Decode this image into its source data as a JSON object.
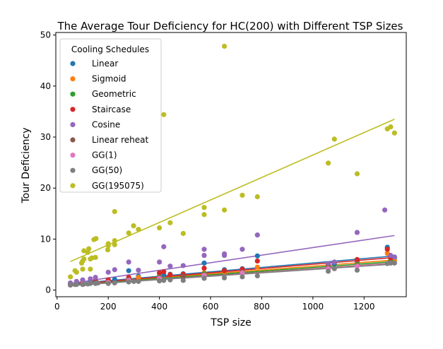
{
  "chart_data": {
    "type": "scatter",
    "title": "The Average Tour Deficiency for HC(200) with Different TSP Sizes",
    "xlabel": "TSP size",
    "ylabel": "Tour Deficiency",
    "xlim": [
      -5,
      1365
    ],
    "ylim": [
      -1.3,
      50.5
    ],
    "xticks": [
      0,
      200,
      400,
      600,
      800,
      1000,
      1200
    ],
    "yticks": [
      0,
      10,
      20,
      30,
      40,
      50
    ],
    "grid": false,
    "legend_title": "Cooling Schedules",
    "legend_position": "upper-left",
    "series": [
      {
        "name": "Linear",
        "color": "#1f77b4",
        "trend": [
          [
            52,
            1.2
          ],
          [
            1319,
            6.7
          ]
        ],
        "points": [
          [
            52,
            1.3
          ],
          [
            76,
            1.4
          ],
          [
            100,
            1.5
          ],
          [
            130,
            1.6
          ],
          [
            150,
            1.8
          ],
          [
            200,
            2.0
          ],
          [
            225,
            2.1
          ],
          [
            280,
            3.8
          ],
          [
            318,
            2.7
          ],
          [
            400,
            3.3
          ],
          [
            417,
            3.0
          ],
          [
            442,
            3.1
          ],
          [
            493,
            3.2
          ],
          [
            575,
            5.3
          ],
          [
            654,
            4.0
          ],
          [
            724,
            4.2
          ],
          [
            783,
            6.7
          ],
          [
            1060,
            4.9
          ],
          [
            1084,
            5.2
          ],
          [
            1173,
            5.6
          ],
          [
            1291,
            8.4
          ],
          [
            1304,
            6.5
          ],
          [
            1319,
            6.3
          ]
        ]
      },
      {
        "name": "Sigmoid",
        "color": "#ff7f0e",
        "trend": [
          [
            52,
            1.1
          ],
          [
            1319,
            5.9
          ]
        ],
        "points": [
          [
            52,
            1.2
          ],
          [
            100,
            1.4
          ],
          [
            150,
            1.6
          ],
          [
            200,
            1.9
          ],
          [
            280,
            2.3
          ],
          [
            318,
            2.5
          ],
          [
            400,
            2.8
          ],
          [
            442,
            3.0
          ],
          [
            493,
            3.1
          ],
          [
            575,
            3.4
          ],
          [
            654,
            3.6
          ],
          [
            724,
            3.8
          ],
          [
            783,
            4.5
          ],
          [
            1060,
            4.7
          ],
          [
            1173,
            5.1
          ],
          [
            1291,
            7.2
          ],
          [
            1304,
            6.1
          ],
          [
            1319,
            5.8
          ]
        ]
      },
      {
        "name": "Geometric",
        "color": "#2ca02c",
        "trend": [
          [
            52,
            1.0
          ],
          [
            1319,
            5.6
          ]
        ],
        "points": [
          [
            52,
            1.1
          ],
          [
            100,
            1.3
          ],
          [
            150,
            1.5
          ],
          [
            200,
            1.7
          ],
          [
            280,
            2.2
          ],
          [
            400,
            2.6
          ],
          [
            493,
            2.9
          ],
          [
            575,
            3.2
          ],
          [
            724,
            3.7
          ],
          [
            1060,
            4.5
          ],
          [
            1173,
            5.0
          ],
          [
            1304,
            5.7
          ]
        ]
      },
      {
        "name": "Staircase",
        "color": "#d62728",
        "trend": [
          [
            52,
            1.1
          ],
          [
            1319,
            6.4
          ]
        ],
        "points": [
          [
            52,
            1.3
          ],
          [
            100,
            1.5
          ],
          [
            150,
            1.7
          ],
          [
            200,
            2.0
          ],
          [
            280,
            2.5
          ],
          [
            400,
            3.4
          ],
          [
            417,
            3.6
          ],
          [
            442,
            3.0
          ],
          [
            493,
            3.1
          ],
          [
            575,
            4.3
          ],
          [
            654,
            3.8
          ],
          [
            724,
            4.1
          ],
          [
            783,
            5.7
          ],
          [
            1060,
            5.0
          ],
          [
            1173,
            6.0
          ],
          [
            1291,
            8.0
          ],
          [
            1304,
            6.3
          ]
        ]
      },
      {
        "name": "Cosine",
        "color": "#9467bd",
        "trend": [
          [
            52,
            1.3
          ],
          [
            1319,
            10.7
          ]
        ],
        "points": [
          [
            52,
            1.4
          ],
          [
            76,
            1.7
          ],
          [
            100,
            2.0
          ],
          [
            130,
            2.2
          ],
          [
            150,
            2.5
          ],
          [
            200,
            3.5
          ],
          [
            225,
            4.0
          ],
          [
            280,
            5.5
          ],
          [
            318,
            3.9
          ],
          [
            400,
            5.5
          ],
          [
            417,
            8.5
          ],
          [
            442,
            4.7
          ],
          [
            493,
            4.8
          ],
          [
            575,
            8.0
          ],
          [
            575,
            6.8
          ],
          [
            654,
            7.1
          ],
          [
            654,
            6.8
          ],
          [
            724,
            8.0
          ],
          [
            783,
            10.8
          ],
          [
            1060,
            5.2
          ],
          [
            1084,
            5.5
          ],
          [
            1173,
            11.3
          ],
          [
            1281,
            15.7
          ],
          [
            1304,
            6.8
          ],
          [
            1319,
            6.5
          ]
        ]
      },
      {
        "name": "Linear reheat",
        "color": "#8c564b",
        "trend": [
          [
            52,
            0.9
          ],
          [
            1319,
            5.3
          ]
        ],
        "points": [
          [
            52,
            1.0
          ],
          [
            100,
            1.2
          ],
          [
            150,
            1.4
          ],
          [
            200,
            1.6
          ],
          [
            280,
            2.0
          ],
          [
            400,
            2.4
          ],
          [
            493,
            2.7
          ],
          [
            575,
            3.0
          ],
          [
            724,
            3.5
          ],
          [
            1060,
            4.3
          ],
          [
            1173,
            4.8
          ],
          [
            1304,
            5.4
          ]
        ]
      },
      {
        "name": "GG(1)",
        "color": "#e377c2",
        "trend": [
          [
            52,
            0.9
          ],
          [
            1319,
            5.2
          ]
        ],
        "points": [
          [
            52,
            1.0
          ],
          [
            100,
            1.2
          ],
          [
            200,
            1.5
          ],
          [
            280,
            1.9
          ],
          [
            400,
            2.3
          ],
          [
            575,
            2.9
          ],
          [
            724,
            3.4
          ],
          [
            1060,
            4.2
          ],
          [
            1173,
            4.7
          ],
          [
            1304,
            5.3
          ]
        ]
      },
      {
        "name": "GG(50)",
        "color": "#7f7f7f",
        "trend": [
          [
            52,
            0.9
          ],
          [
            1319,
            5.1
          ]
        ],
        "points": [
          [
            52,
            1.0
          ],
          [
            70,
            1.1
          ],
          [
            76,
            1.1
          ],
          [
            100,
            1.1
          ],
          [
            105,
            1.2
          ],
          [
            120,
            1.2
          ],
          [
            130,
            1.3
          ],
          [
            150,
            1.3
          ],
          [
            160,
            1.4
          ],
          [
            200,
            1.3
          ],
          [
            225,
            1.4
          ],
          [
            280,
            1.6
          ],
          [
            300,
            1.7
          ],
          [
            318,
            1.7
          ],
          [
            400,
            1.8
          ],
          [
            417,
            1.9
          ],
          [
            442,
            2.0
          ],
          [
            493,
            1.9
          ],
          [
            575,
            2.3
          ],
          [
            654,
            2.4
          ],
          [
            724,
            2.6
          ],
          [
            783,
            2.8
          ],
          [
            1060,
            3.7
          ],
          [
            1084,
            4.2
          ],
          [
            1173,
            3.9
          ],
          [
            1291,
            5.2
          ],
          [
            1304,
            5.3
          ],
          [
            1319,
            5.3
          ]
        ]
      },
      {
        "name": "GG(195075)",
        "color": "#bcbd22",
        "trend": [
          [
            52,
            5.6
          ],
          [
            1319,
            33.5
          ]
        ],
        "points": [
          [
            52,
            2.6
          ],
          [
            70,
            3.8
          ],
          [
            76,
            3.5
          ],
          [
            96,
            5.3
          ],
          [
            100,
            4.1
          ],
          [
            100,
            5.7
          ],
          [
            105,
            7.7
          ],
          [
            105,
            6.1
          ],
          [
            120,
            7.4
          ],
          [
            124,
            8.1
          ],
          [
            130,
            4.1
          ],
          [
            130,
            6.1
          ],
          [
            136,
            6.3
          ],
          [
            144,
            9.9
          ],
          [
            150,
            6.4
          ],
          [
            152,
            10.1
          ],
          [
            198,
            7.9
          ],
          [
            200,
            8.7
          ],
          [
            200,
            9.1
          ],
          [
            225,
            15.4
          ],
          [
            225,
            9.7
          ],
          [
            225,
            8.9
          ],
          [
            280,
            11.2
          ],
          [
            299,
            12.6
          ],
          [
            318,
            11.9
          ],
          [
            400,
            12.2
          ],
          [
            417,
            34.4
          ],
          [
            442,
            13.2
          ],
          [
            493,
            11.1
          ],
          [
            575,
            14.8
          ],
          [
            575,
            16.2
          ],
          [
            654,
            47.8
          ],
          [
            654,
            15.7
          ],
          [
            724,
            18.6
          ],
          [
            783,
            18.3
          ],
          [
            1060,
            24.9
          ],
          [
            1084,
            29.6
          ],
          [
            1173,
            22.8
          ],
          [
            1291,
            31.6
          ],
          [
            1304,
            32.0
          ],
          [
            1319,
            30.8
          ]
        ]
      }
    ]
  }
}
